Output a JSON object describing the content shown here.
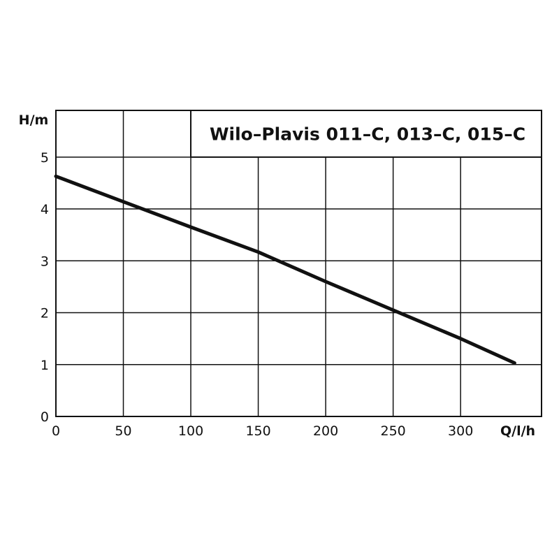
{
  "chart_data": {
    "type": "line",
    "title": "Wilo–Plavis 011–C, 013–C, 015–C",
    "xlabel": "Q/l/h",
    "ylabel": "H/m",
    "xlim": [
      0,
      360
    ],
    "ylim": [
      0,
      5.9
    ],
    "x_ticks": [
      "0",
      "50",
      "100",
      "150",
      "200",
      "250",
      "300"
    ],
    "y_ticks": [
      "0",
      "1",
      "2",
      "3",
      "4",
      "5"
    ],
    "grid": true,
    "legend": "none",
    "series": [
      {
        "color": "#111111",
        "points": [
          [
            0,
            4.63
          ],
          [
            50,
            4.14
          ],
          [
            100,
            3.65
          ],
          [
            150,
            3.17
          ],
          [
            200,
            2.6
          ],
          [
            250,
            2.05
          ],
          [
            300,
            1.5
          ],
          [
            340,
            1.03
          ]
        ]
      }
    ]
  }
}
